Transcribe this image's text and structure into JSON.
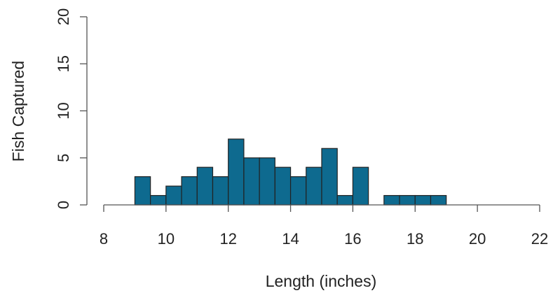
{
  "chart_data": {
    "type": "bar",
    "title": "",
    "xlabel": "Length (inches)",
    "ylabel": "Fish Captured",
    "bar_color": "#0e6a8f",
    "edge_color": "#222222",
    "axis_color": "#555555",
    "bin_width": 0.5,
    "bins": [
      {
        "start": 9.0,
        "count": 3
      },
      {
        "start": 9.5,
        "count": 1
      },
      {
        "start": 10.0,
        "count": 2
      },
      {
        "start": 10.5,
        "count": 3
      },
      {
        "start": 11.0,
        "count": 4
      },
      {
        "start": 11.5,
        "count": 3
      },
      {
        "start": 12.0,
        "count": 7
      },
      {
        "start": 12.5,
        "count": 5
      },
      {
        "start": 13.0,
        "count": 5
      },
      {
        "start": 13.5,
        "count": 4
      },
      {
        "start": 14.0,
        "count": 3
      },
      {
        "start": 14.5,
        "count": 4
      },
      {
        "start": 15.0,
        "count": 6
      },
      {
        "start": 15.5,
        "count": 1
      },
      {
        "start": 16.0,
        "count": 4
      },
      {
        "start": 16.5,
        "count": 0
      },
      {
        "start": 17.0,
        "count": 1
      },
      {
        "start": 17.5,
        "count": 1
      },
      {
        "start": 18.0,
        "count": 1
      },
      {
        "start": 18.5,
        "count": 1
      }
    ],
    "xlim": [
      8,
      22
    ],
    "ylim": [
      0,
      20
    ],
    "x_ticks": [
      "8",
      "10",
      "12",
      "14",
      "16",
      "18",
      "20",
      "22"
    ],
    "y_ticks": [
      "0",
      "5",
      "10",
      "15",
      "20"
    ],
    "grid": false
  }
}
